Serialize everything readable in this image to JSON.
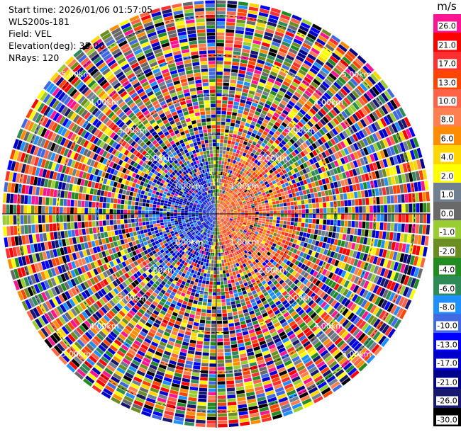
{
  "info": {
    "start_time": "Start time: 2026/01/06 01:57:05",
    "instrument": "WLS200s-181",
    "field": "Field: VEL",
    "elevation": "Elevation(deg): 35.00",
    "nrays": "NRays: 120"
  },
  "chart_data": {
    "type": "heatmap",
    "subtype": "polar-ppi",
    "field": "VEL",
    "elevation_deg": 35.0,
    "n_rays": 120,
    "range_rings_km": [
      1.0,
      2.0,
      3.0,
      4.0,
      5.0
    ],
    "ring_labels": [
      "1.00km",
      "2.00km",
      "3.00km",
      "4.00km",
      "5.00km"
    ],
    "max_range_km": 5.4,
    "colorbar": {
      "unit": "m/s",
      "levels": [
        {
          "label": "26.0",
          "color": "#ff1493"
        },
        {
          "label": "21.0",
          "color": "#ff0000"
        },
        {
          "label": "17.0",
          "color": "#ff3030"
        },
        {
          "label": "13.0",
          "color": "#ff4500"
        },
        {
          "label": "10.0",
          "color": "#ff6347"
        },
        {
          "label": "8.0",
          "color": "#ff7f50"
        },
        {
          "label": "6.0",
          "color": "#ff8c00"
        },
        {
          "label": "4.0",
          "color": "#ffd700"
        },
        {
          "label": "2.0",
          "color": "#ffff00"
        },
        {
          "label": "1.0",
          "color": "#708090"
        },
        {
          "label": "0.0",
          "color": "#696969"
        },
        {
          "label": "-1.0",
          "color": "#9acd32"
        },
        {
          "label": "-2.0",
          "color": "#6b8e23"
        },
        {
          "label": "-4.0",
          "color": "#228b22"
        },
        {
          "label": "-6.0",
          "color": "#2e8b57"
        },
        {
          "label": "-8.0",
          "color": "#1e90ff"
        },
        {
          "label": "-10.0",
          "color": "#4169e1"
        },
        {
          "label": "-13.0",
          "color": "#0000ff"
        },
        {
          "label": "-17.0",
          "color": "#0000cd"
        },
        {
          "label": "-21.0",
          "color": "#00008b"
        },
        {
          "label": "-26.0",
          "color": "#191970"
        },
        {
          "label": "-30.0",
          "color": "#000000"
        }
      ]
    },
    "pattern": "near-range approaching (blue) in west half, receding (red/orange) in east half; beyond ~2 km values are noise across the full scale"
  }
}
